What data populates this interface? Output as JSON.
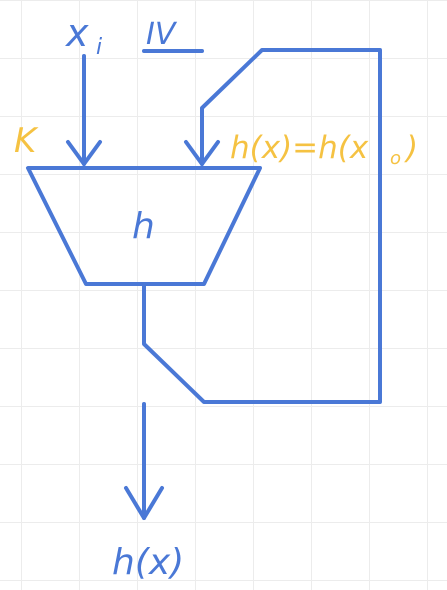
{
  "labels": {
    "input_x": "x",
    "input_sub": "i",
    "roman": "IV",
    "key": "K",
    "feedback": "h(x)=h(x",
    "feedback_sub": "o",
    "feedback_close": ")",
    "block": "h",
    "output": "h(x)"
  },
  "colors": {
    "blue": "#4a78d6",
    "yellow": "#f5c242",
    "grid": "#ececec"
  }
}
